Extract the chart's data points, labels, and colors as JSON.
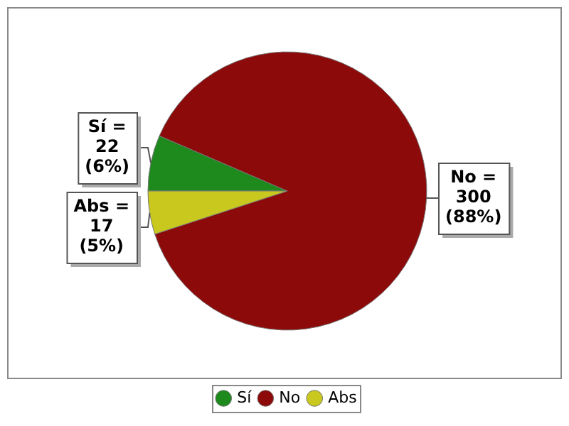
{
  "chart_data": {
    "type": "pie",
    "categories": [
      "Sí",
      "No",
      "Abs"
    ],
    "values": [
      22,
      300,
      17
    ],
    "colors": [
      "#1e8a1e",
      "#8c0a0a",
      "#c8c81e"
    ],
    "value_labels": [
      "Sí = 22 (6%)",
      "No = 300 (88%)",
      "Abs = 17 (5%)"
    ],
    "legend": "bottom"
  }
}
